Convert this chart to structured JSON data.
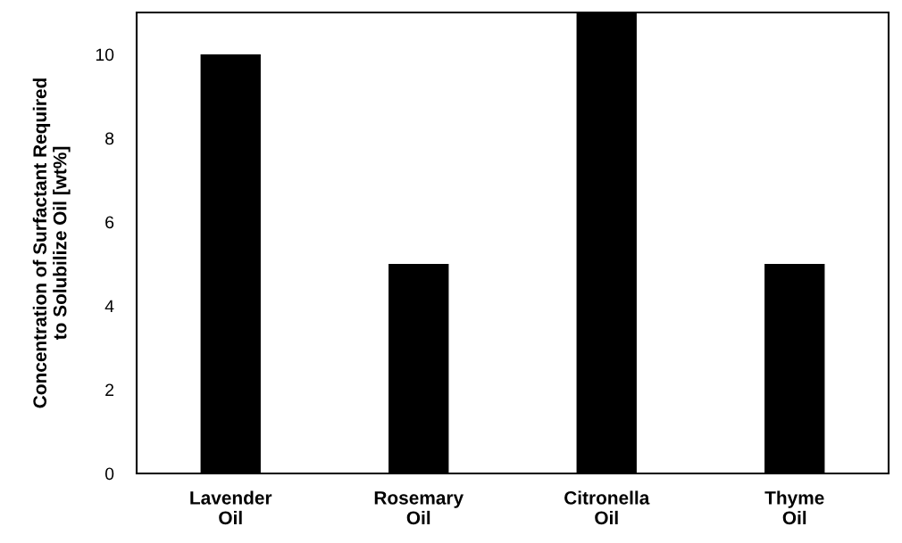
{
  "chart_data": {
    "type": "bar",
    "ylabel": "Concentration of Surfactant Required\nto Solubilize Oil [wt%]",
    "categories": [
      "Lavender\nOil",
      "Rosemary\nOil",
      "Citronella\nOil",
      "Thyme\nOil"
    ],
    "values": [
      10,
      5,
      11,
      5
    ],
    "color": "#000000",
    "ylim": [
      0,
      11
    ],
    "yticks": [
      0,
      2,
      4,
      6,
      8,
      10
    ],
    "grid": false
  }
}
